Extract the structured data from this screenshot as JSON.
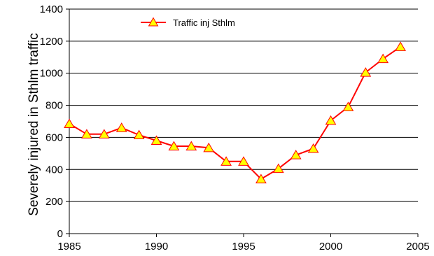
{
  "chart_data": {
    "type": "line",
    "title": "",
    "xlabel": "",
    "ylabel": "Severely injured in Sthlm traffic",
    "xlim": [
      1985,
      2005
    ],
    "ylim": [
      0,
      1400
    ],
    "x_ticks": [
      1985,
      1990,
      1995,
      2000,
      2005
    ],
    "y_ticks": [
      0,
      200,
      400,
      600,
      800,
      1000,
      1200,
      1400
    ],
    "grid": "horizontal",
    "legend_position": "top-left",
    "series": [
      {
        "name": "Traffic inj Sthlm",
        "line_color": "#ff0000",
        "marker_fill": "#ffff00",
        "marker": "triangle",
        "x": [
          1985,
          1986,
          1987,
          1988,
          1989,
          1990,
          1991,
          1992,
          1993,
          1994,
          1995,
          1996,
          1997,
          1998,
          1999,
          2000,
          2001,
          2002,
          2003,
          2004
        ],
        "y": [
          685,
          620,
          620,
          660,
          615,
          580,
          545,
          545,
          535,
          450,
          450,
          340,
          405,
          490,
          530,
          705,
          790,
          1005,
          1090,
          1165
        ]
      }
    ]
  }
}
